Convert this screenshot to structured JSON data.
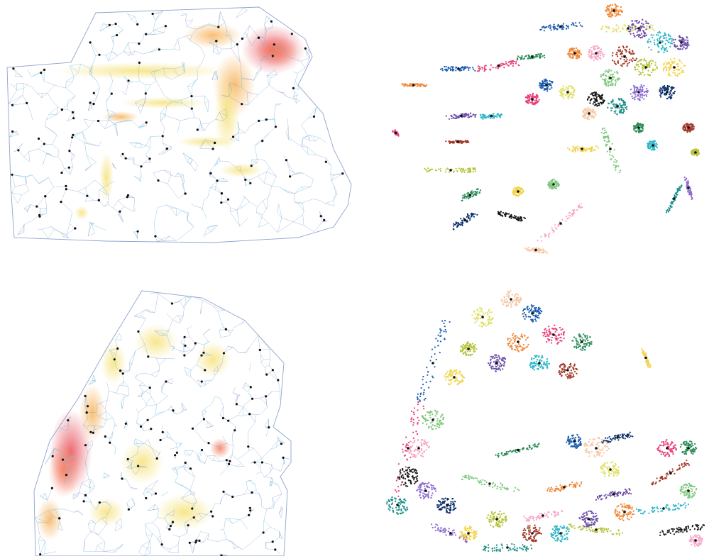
{
  "figure": {
    "panels": [
      {
        "id": "sf-density",
        "kind": "triangulation-density-map",
        "mesh_color": "#8fa3cf",
        "mesh_fine_color": "#7ec8e8",
        "heat_colors": [
          "#f6e27a",
          "#f7b35b",
          "#f27d5e",
          "#e8515c"
        ],
        "centroid_color": "#111111"
      },
      {
        "id": "sf-clusters",
        "kind": "clustered-point-map",
        "palette": [
          "#1f5fb0",
          "#e8407a",
          "#2e8f5a",
          "#f08a3c",
          "#6d4ea8",
          "#2bb6c9",
          "#a33b2a",
          "#b7c23a",
          "#f2d34a",
          "#7fc97f",
          "#f7a8c8",
          "#1a1a1a",
          "#1e8f8a",
          "#8d6bd1",
          "#0b2f6b",
          "#f6c8a6",
          "#e0e06a"
        ],
        "centroid_color": "#111111"
      },
      {
        "id": "nyc-density",
        "kind": "triangulation-density-map",
        "mesh_color": "#8fa3cf",
        "mesh_fine_color": "#7ec8e8",
        "heat_colors": [
          "#f6e27a",
          "#f7b35b",
          "#f27d5e",
          "#e8515c"
        ],
        "centroid_color": "#111111"
      },
      {
        "id": "nyc-clusters",
        "kind": "clustered-point-map",
        "palette": [
          "#1f5fb0",
          "#e8407a",
          "#2e8f5a",
          "#f08a3c",
          "#6d4ea8",
          "#2bb6c9",
          "#a33b2a",
          "#b7c23a",
          "#f2d34a",
          "#7fc97f",
          "#f7a8c8",
          "#1a1a1a",
          "#1e8f8a",
          "#8d6bd1",
          "#0b2f6b",
          "#f6c8a6",
          "#e0e06a"
        ],
        "centroid_color": "#111111"
      }
    ]
  }
}
